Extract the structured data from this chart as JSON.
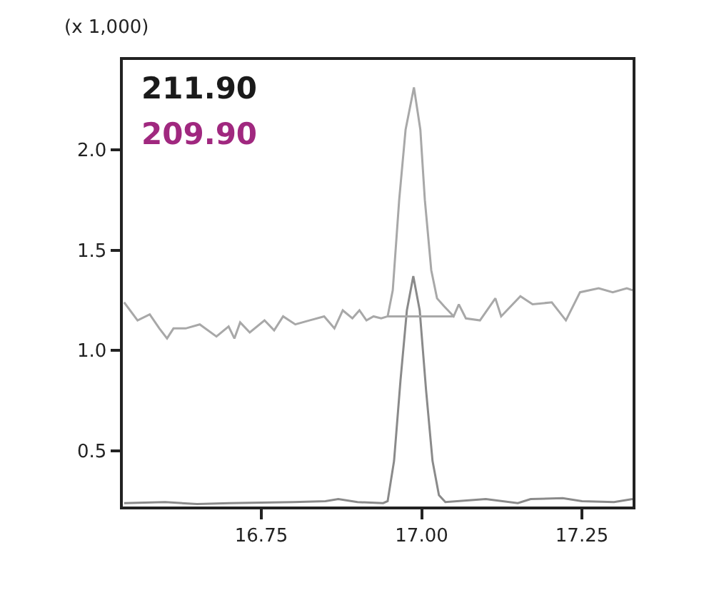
{
  "chart_data": {
    "type": "line",
    "ylabel": "(x 1,000)",
    "annotations": [
      "211.90",
      "209.90"
    ],
    "xlim": [
      16.534,
      17.329
    ],
    "xticks": [
      16.75,
      {
        "value": 17,
        "label": "17.00"
      },
      17.25
    ],
    "ylim": [
      0.223,
      2.447
    ],
    "yticks": [
      0.5,
      {
        "value": 1,
        "label": "1.0"
      },
      1.5,
      {
        "value": 2,
        "label": "2.0"
      }
    ],
    "marker": "none",
    "line_style": "solid",
    "series": [
      {
        "color": "#a8a8a8",
        "x": [
          16.536,
          16.557,
          16.576,
          16.591,
          16.603,
          16.613,
          16.632,
          16.654,
          16.68,
          16.699,
          16.708,
          16.717,
          16.732,
          16.755,
          16.77,
          16.784,
          16.803,
          16.825,
          16.848,
          16.864,
          16.877,
          16.892,
          16.903,
          16.914,
          16.925,
          16.937,
          16.947,
          16.955,
          16.965,
          16.975,
          16.988,
          16.998,
          17.005,
          17.015,
          17.024,
          17.035,
          17.05,
          17.058,
          17.069,
          17.091,
          17.115,
          17.124,
          17.154,
          17.173,
          17.203,
          17.225,
          17.247,
          17.276,
          17.298,
          17.32,
          17.329
        ],
        "values": [
          1.24,
          1.15,
          1.18,
          1.11,
          1.06,
          1.11,
          1.11,
          1.13,
          1.07,
          1.12,
          1.06,
          1.14,
          1.09,
          1.15,
          1.1,
          1.17,
          1.13,
          1.15,
          1.17,
          1.11,
          1.2,
          1.16,
          1.2,
          1.15,
          1.17,
          1.16,
          1.17,
          1.3,
          1.75,
          2.1,
          2.31,
          2.1,
          1.75,
          1.4,
          1.26,
          1.22,
          1.17,
          1.23,
          1.16,
          1.15,
          1.26,
          1.17,
          1.27,
          1.23,
          1.24,
          1.15,
          1.29,
          1.31,
          1.29,
          1.31,
          1.3
        ]
      },
      {
        "color": "#8a8a8a",
        "x": [
          16.536,
          16.6,
          16.65,
          16.7,
          16.8,
          16.85,
          16.87,
          16.9,
          16.94,
          16.947,
          16.957,
          16.967,
          16.977,
          16.987,
          16.997,
          17.007,
          17.017,
          17.027,
          17.037,
          17.1,
          17.15,
          17.17,
          17.22,
          17.25,
          17.3,
          17.329
        ],
        "values": [
          0.24,
          0.245,
          0.235,
          0.24,
          0.245,
          0.25,
          0.26,
          0.245,
          0.24,
          0.25,
          0.45,
          0.85,
          1.2,
          1.37,
          1.2,
          0.8,
          0.45,
          0.28,
          0.245,
          0.26,
          0.24,
          0.26,
          0.265,
          0.25,
          0.245,
          0.26
        ]
      },
      {
        "color": "#a8a8a8",
        "x": [
          16.947,
          17.05
        ],
        "values": [
          1.17,
          1.17
        ]
      }
    ]
  }
}
